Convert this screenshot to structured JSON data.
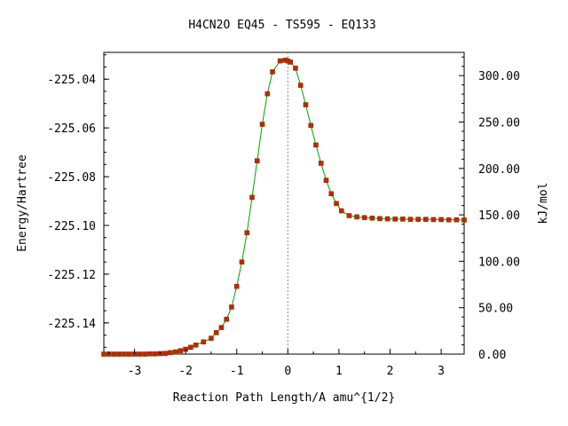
{
  "chart_data": {
    "type": "line",
    "title": "H4CN2O   EQ45 - TS595 - EQ133",
    "xlabel": "Reaction Path Length/A amu^{1/2}",
    "ylabel_left": "Energy/Hartree",
    "ylabel_right": "kJ/mol",
    "xlim": [
      -3.6,
      3.45
    ],
    "ylim": [
      -225.1528,
      -225.029
    ],
    "x_ticks": [
      -3,
      -2,
      -1,
      0,
      1,
      2,
      3
    ],
    "x_tick_labels": [
      "-3",
      "-2",
      "-1",
      "0",
      "1",
      "2",
      "3"
    ],
    "y_ticks": [
      -225.04,
      -225.06,
      -225.08,
      -225.1,
      -225.12,
      -225.14
    ],
    "y_tick_labels": [
      "-225.04",
      "-225.06",
      "-225.08",
      "-225.10",
      "-225.12",
      "-225.14"
    ],
    "y2_ticks": [
      0,
      50,
      100,
      150,
      200,
      250,
      300
    ],
    "y2_tick_labels": [
      "0.00",
      "50.00",
      "100.00",
      "150.00",
      "200.00",
      "250.00",
      "300.00"
    ],
    "y2_reference_hartree": -225.1528,
    "hartree_to_kjmol": 2625.5,
    "ts_x": 0.0,
    "grid": false,
    "colors": {
      "line": "#00a000",
      "marker": "#d02000",
      "ts_line": "#888888"
    },
    "series": [
      {
        "x": [
          -3.6,
          -3.5,
          -3.4,
          -3.3,
          -3.2,
          -3.1,
          -3.0,
          -2.9,
          -2.8,
          -2.7,
          -2.6,
          -2.5,
          -2.4,
          -2.3,
          -2.2,
          -2.1,
          -2.0,
          -1.9,
          -1.8,
          -1.65,
          -1.5,
          -1.4,
          -1.3,
          -1.2,
          -1.1,
          -1.0,
          -0.9,
          -0.8,
          -0.7,
          -0.6,
          -0.5,
          -0.4,
          -0.3,
          -0.15,
          -0.05,
          0.0,
          0.05,
          0.15,
          0.25,
          0.35,
          0.45,
          0.55,
          0.65,
          0.75,
          0.85,
          0.95,
          1.05,
          1.2,
          1.35,
          1.5,
          1.65,
          1.8,
          1.95,
          2.1,
          2.25,
          2.4,
          2.55,
          2.7,
          2.85,
          3.0,
          3.15,
          3.3,
          3.45
        ],
        "y": [
          -225.1528,
          -225.1528,
          -225.1528,
          -225.1528,
          -225.1528,
          -225.1528,
          -225.1528,
          -225.1528,
          -225.1528,
          -225.1527,
          -225.1527,
          -225.1526,
          -225.1525,
          -225.1522,
          -225.1519,
          -225.1514,
          -225.1508,
          -225.15,
          -225.1491,
          -225.1478,
          -225.1463,
          -225.144,
          -225.1419,
          -225.1385,
          -225.1335,
          -225.125,
          -225.115,
          -225.103,
          -225.0885,
          -225.0735,
          -225.0585,
          -225.046,
          -225.037,
          -225.0325,
          -225.0322,
          -225.0325,
          -225.033,
          -225.0355,
          -225.0425,
          -225.0505,
          -225.059,
          -225.067,
          -225.0745,
          -225.0815,
          -225.087,
          -225.091,
          -225.094,
          -225.096,
          -225.0965,
          -225.0968,
          -225.097,
          -225.0972,
          -225.0973,
          -225.0974,
          -225.0974,
          -225.0975,
          -225.0975,
          -225.0975,
          -225.0976,
          -225.0976,
          -225.0977,
          -225.0977,
          -225.0978
        ]
      }
    ]
  }
}
